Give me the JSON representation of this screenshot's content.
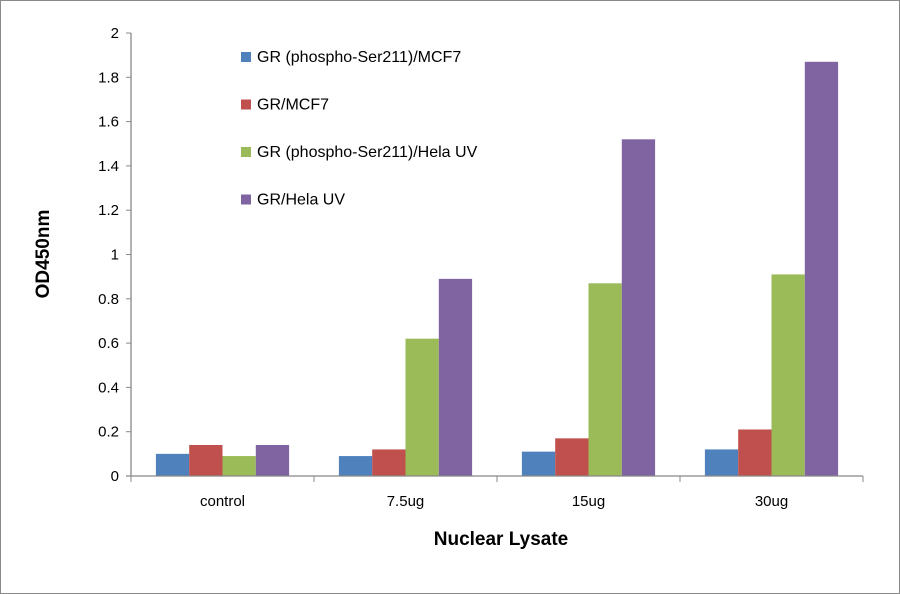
{
  "chart_data": {
    "type": "bar",
    "title": "",
    "xlabel": "Nuclear Lysate",
    "ylabel": "OD450nm",
    "ylim": [
      0,
      2
    ],
    "yticks": [
      "0",
      "0.2",
      "0.4",
      "0.6",
      "0.8",
      "1",
      "1.2",
      "1.4",
      "1.6",
      "1.8",
      "2"
    ],
    "categories": [
      "control",
      "7.5ug",
      "15ug",
      "30ug"
    ],
    "legend_position": "top-left",
    "grid": false,
    "series": [
      {
        "name": "GR (phospho-Ser211)/MCF7",
        "color": "#4F81BD",
        "values": [
          0.1,
          0.09,
          0.11,
          0.12
        ]
      },
      {
        "name": "GR/MCF7",
        "color": "#C0504D",
        "values": [
          0.14,
          0.12,
          0.17,
          0.21
        ]
      },
      {
        "name": "GR (phospho-Ser211)/Hela UV",
        "color": "#9BBB59",
        "values": [
          0.09,
          0.62,
          0.87,
          0.91
        ]
      },
      {
        "name": "GR/Hela UV",
        "color": "#8064A2",
        "values": [
          0.14,
          0.89,
          1.52,
          1.87
        ]
      }
    ]
  }
}
